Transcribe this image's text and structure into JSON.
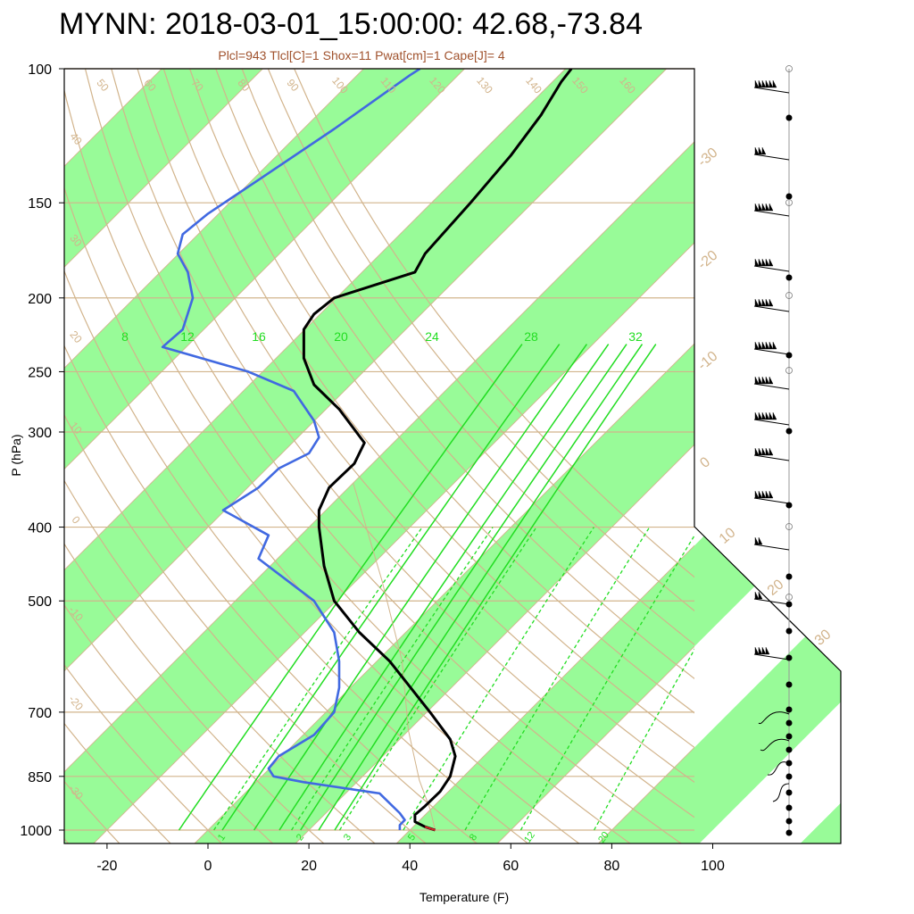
{
  "header": {
    "title": "MYNN: 2018-03-01_15:00:00: 42.68,-73.84",
    "subtitle": "Plcl=943 Tlcl[C]=1 Shox=11 Pwat[cm]=1 Cape[J]= 4"
  },
  "chart_data": {
    "type": "line",
    "title": "MYNN: 2018-03-01_15:00:00: 42.68,-73.84",
    "subtitle": "Plcl=943 Tlcl[C]=1 Shox=11 Pwat[cm]=1 Cape[J]= 4",
    "xlabel": "Temperature (F)",
    "ylabel": "P (hPa)",
    "y_scale": "log",
    "y_ticks": [
      100,
      150,
      200,
      250,
      300,
      400,
      500,
      700,
      850,
      1000
    ],
    "x_ticks": [
      -20,
      0,
      20,
      40,
      60,
      80,
      100
    ],
    "grid": true,
    "colors": {
      "temperature": "#000000",
      "dewpoint": "#4169e1",
      "isobar": "#d2b48c",
      "band": "#98fb98",
      "mixing_ratio": "#22dd22",
      "parcel": "#d2b48c"
    },
    "series": [
      {
        "name": "",
        "values_xy": [
          [
            45,
            1000
          ],
          [
            43,
            990
          ],
          [
            41,
            975
          ],
          [
            41,
            955
          ],
          [
            43,
            930
          ],
          [
            46,
            890
          ],
          [
            48,
            850
          ],
          [
            49,
            800
          ],
          [
            48,
            760
          ],
          [
            44,
            700
          ],
          [
            36,
            600
          ],
          [
            30,
            550
          ],
          [
            25,
            500
          ],
          [
            23,
            450
          ],
          [
            22,
            400
          ],
          [
            22,
            380
          ],
          [
            24,
            355
          ],
          [
            29,
            330
          ],
          [
            31,
            310
          ],
          [
            26,
            280
          ],
          [
            21,
            260
          ],
          [
            19,
            240
          ],
          [
            19,
            220
          ],
          [
            21,
            210
          ],
          [
            25,
            200
          ],
          [
            41,
            185
          ],
          [
            43,
            175
          ],
          [
            52,
            150
          ],
          [
            60,
            130
          ],
          [
            66,
            115
          ],
          [
            70,
            104
          ],
          [
            72,
            100
          ]
        ]
      },
      {
        "name": "",
        "values_xy": [
          [
            38,
            1000
          ],
          [
            38,
            985
          ],
          [
            39,
            970
          ],
          [
            38,
            950
          ],
          [
            34,
            895
          ],
          [
            19,
            865
          ],
          [
            13,
            850
          ],
          [
            12,
            830
          ],
          [
            14,
            800
          ],
          [
            21,
            750
          ],
          [
            25,
            700
          ],
          [
            26,
            650
          ],
          [
            26,
            600
          ],
          [
            25,
            550
          ],
          [
            21,
            500
          ],
          [
            10,
            440
          ],
          [
            12,
            410
          ],
          [
            3,
            380
          ],
          [
            10,
            355
          ],
          [
            14,
            335
          ],
          [
            20,
            320
          ],
          [
            22,
            305
          ],
          [
            21,
            290
          ],
          [
            17,
            265
          ],
          [
            8,
            250
          ],
          [
            -9,
            232
          ],
          [
            -5,
            220
          ],
          [
            -3,
            200
          ],
          [
            -4,
            185
          ],
          [
            -6,
            175
          ],
          [
            -5,
            165
          ],
          [
            0,
            155
          ],
          [
            10,
            140
          ],
          [
            25,
            120
          ],
          [
            40,
            102
          ],
          [
            42,
            100
          ]
        ]
      }
    ],
    "mixing_ratio_labels_top": [
      "8",
      "12",
      "16",
      "20",
      "24",
      "28",
      "32"
    ],
    "mixing_ratio_labels_bottom": [
      "1",
      "2",
      "3",
      "5",
      "8",
      "12",
      "20"
    ],
    "adiabat_labels": [
      "50",
      "60",
      "70",
      "80",
      "90",
      "100",
      "110",
      "120",
      "130",
      "140",
      "150",
      "160",
      "40",
      "30",
      "20",
      "10",
      "0",
      "-10",
      "-20",
      "-30"
    ],
    "isotherm_labels": [
      "-30",
      "-20",
      "-10",
      "0",
      "10",
      "20",
      "30"
    ]
  }
}
